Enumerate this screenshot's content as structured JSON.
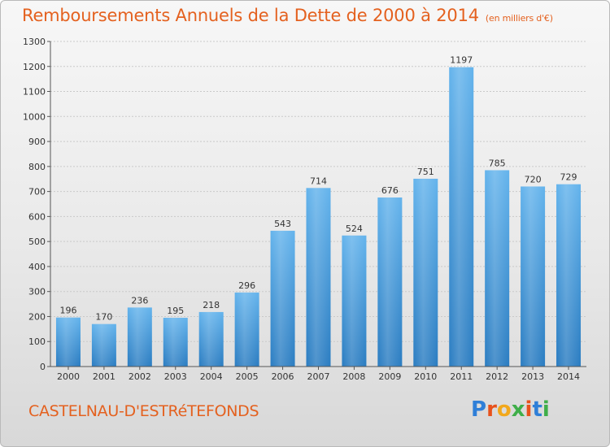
{
  "header": {
    "title": "Remboursements Annuels de la Dette de 2000 à 2014",
    "unit": "(en milliers d'€)"
  },
  "footer": {
    "commune": "CASTELNAU-D'ESTRéTEFONDS",
    "brand_letters": [
      "P",
      "r",
      "o",
      "x",
      "i",
      "t",
      "i"
    ],
    "brand_colors": [
      "#2f7fd8",
      "#e8521c",
      "#f2a81c",
      "#3fae49",
      "#e8521c",
      "#2f7fd8",
      "#3fae49"
    ]
  },
  "colors": {
    "accent": "#e4611f",
    "bar_light": "#63b3ec",
    "bar_dark": "#2a7cc1"
  },
  "chart_data": {
    "type": "bar",
    "title": "Remboursements Annuels de la Dette de 2000 à 2014",
    "ylabel": "(en milliers d'€)",
    "xlabel": "",
    "categories": [
      "2000",
      "2001",
      "2002",
      "2003",
      "2004",
      "2005",
      "2006",
      "2007",
      "2008",
      "2009",
      "2010",
      "2011",
      "2012",
      "2013",
      "2014"
    ],
    "values": [
      196,
      170,
      236,
      195,
      218,
      296,
      543,
      714,
      524,
      676,
      751,
      1197,
      785,
      720,
      729
    ],
    "value_labels": [
      "196",
      "170",
      "236",
      "195",
      "218",
      "296",
      "543",
      "714",
      "524",
      "676",
      "751",
      "1197",
      "785",
      "720",
      "729"
    ],
    "ylim": [
      0,
      1300
    ],
    "yticks": [
      0,
      100,
      200,
      300,
      400,
      500,
      600,
      700,
      800,
      900,
      1000,
      1100,
      1200,
      1300
    ],
    "ytick_labels": [
      "0",
      "100",
      "200",
      "300",
      "400",
      "500",
      "600",
      "700",
      "800",
      "900",
      "1000",
      "1100",
      "1200",
      "1300"
    ],
    "grid": true
  }
}
